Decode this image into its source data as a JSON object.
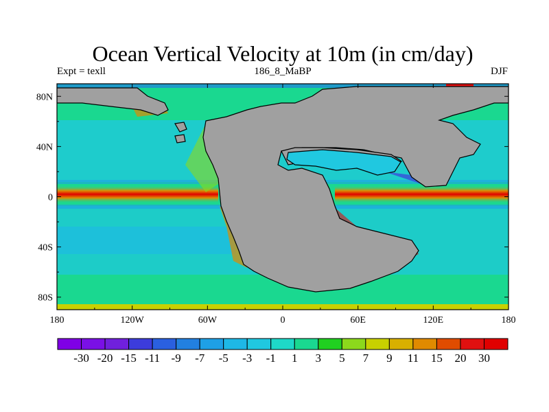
{
  "chart_data": {
    "type": "heatmap",
    "title": "Ocean Vertical Velocity at 10m (in cm/day)",
    "left_string": "Expt = texll",
    "center_string": "186_8_MaBP",
    "right_string": "DJF",
    "x_ticks": [
      {
        "value": -180,
        "label": "180"
      },
      {
        "value": -120,
        "label": "120W"
      },
      {
        "value": -60,
        "label": "60W"
      },
      {
        "value": 0,
        "label": "0"
      },
      {
        "value": 60,
        "label": "60E"
      },
      {
        "value": 120,
        "label": "120E"
      },
      {
        "value": 180,
        "label": "180"
      }
    ],
    "y_ticks": [
      {
        "value": 80,
        "label": "80N"
      },
      {
        "value": 40,
        "label": "40N"
      },
      {
        "value": 0,
        "label": "0"
      },
      {
        "value": -40,
        "label": "40S"
      },
      {
        "value": -80,
        "label": "80S"
      }
    ],
    "xlim": [
      -180,
      180
    ],
    "ylim": [
      -90,
      90
    ],
    "colorbar": {
      "labels": [
        "-30",
        "-20",
        "-15",
        "-11",
        "-9",
        "-7",
        "-5",
        "-3",
        "-1",
        "1",
        "3",
        "5",
        "7",
        "9",
        "11",
        "15",
        "20",
        "30"
      ],
      "colors": [
        "#7f00e6",
        "#7a10e6",
        "#7020dd",
        "#3c3cdc",
        "#2a60e0",
        "#2280e0",
        "#1ea0e6",
        "#1eb8e6",
        "#20c8e0",
        "#1ed8c8",
        "#1ad890",
        "#20d020",
        "#8cd81c",
        "#c8d000",
        "#d8b000",
        "#e08a00",
        "#e04c00",
        "#e01010",
        "#e00000"
      ]
    },
    "land_color": "#a0a0a0"
  }
}
